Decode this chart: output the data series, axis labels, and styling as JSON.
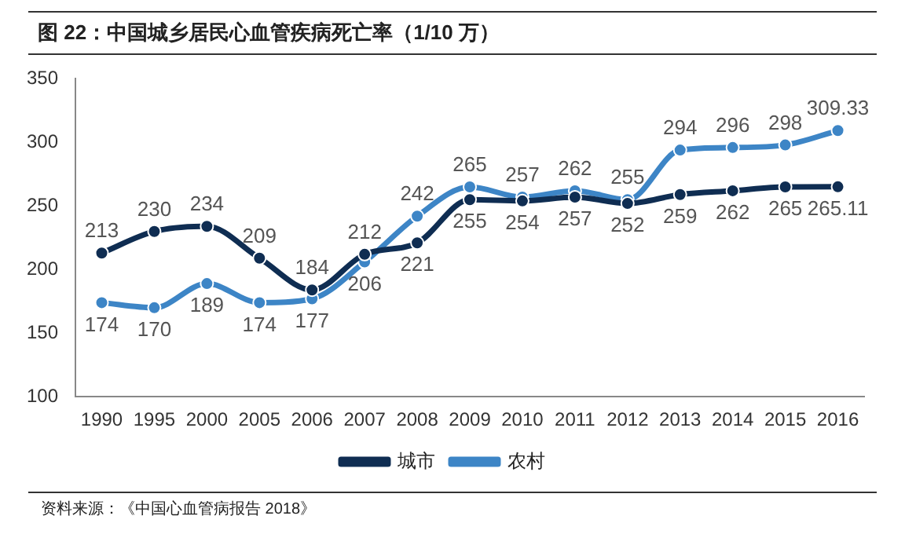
{
  "chart_data": {
    "type": "line",
    "title": "图 22：中国城乡居民心血管疾病死亡率（1/10 万）",
    "categories": [
      "1990",
      "1995",
      "2000",
      "2005",
      "2006",
      "2007",
      "2008",
      "2009",
      "2010",
      "2011",
      "2012",
      "2013",
      "2014",
      "2015",
      "2016"
    ],
    "series": [
      {
        "name": "城市",
        "color": "#0f2d52",
        "values": [
          213,
          230,
          234,
          209,
          184,
          212,
          221,
          255,
          254,
          257,
          252,
          259,
          262,
          265,
          265.11
        ]
      },
      {
        "name": "农村",
        "color": "#3d85c6",
        "values": [
          174,
          170,
          189,
          174,
          177,
          206,
          242,
          265,
          257,
          262,
          255,
          294,
          296,
          298,
          309.33
        ]
      }
    ],
    "ylim": [
      100,
      350
    ],
    "yticks": [
      100,
      150,
      200,
      250,
      300,
      350
    ],
    "grid": false,
    "legend": "bottom",
    "marker": "circle",
    "line_style": "solid",
    "data_labels": true,
    "annotations": [
      "资料来源：《中国心血管病报告 2018》"
    ]
  }
}
